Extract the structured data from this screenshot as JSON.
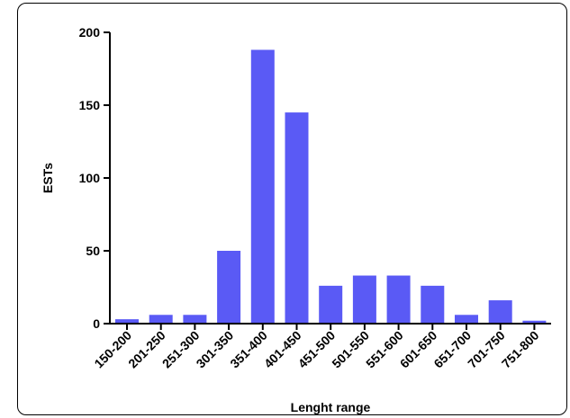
{
  "chart_data": {
    "type": "bar",
    "categories": [
      "150-200",
      "201-250",
      "251-300",
      "301-350",
      "351-400",
      "401-450",
      "451-500",
      "501-550",
      "551-600",
      "601-650",
      "651-700",
      "701-750",
      "751-800"
    ],
    "values": [
      3,
      6,
      6,
      50,
      188,
      145,
      26,
      33,
      33,
      26,
      6,
      16,
      2
    ],
    "xlabel": "Lenght range",
    "ylabel": "ESTs",
    "ylim": [
      0,
      200
    ],
    "yticks": [
      0,
      50,
      100,
      150,
      200
    ],
    "grid": false,
    "legend": "none",
    "bar_color": "#5a5af5"
  }
}
